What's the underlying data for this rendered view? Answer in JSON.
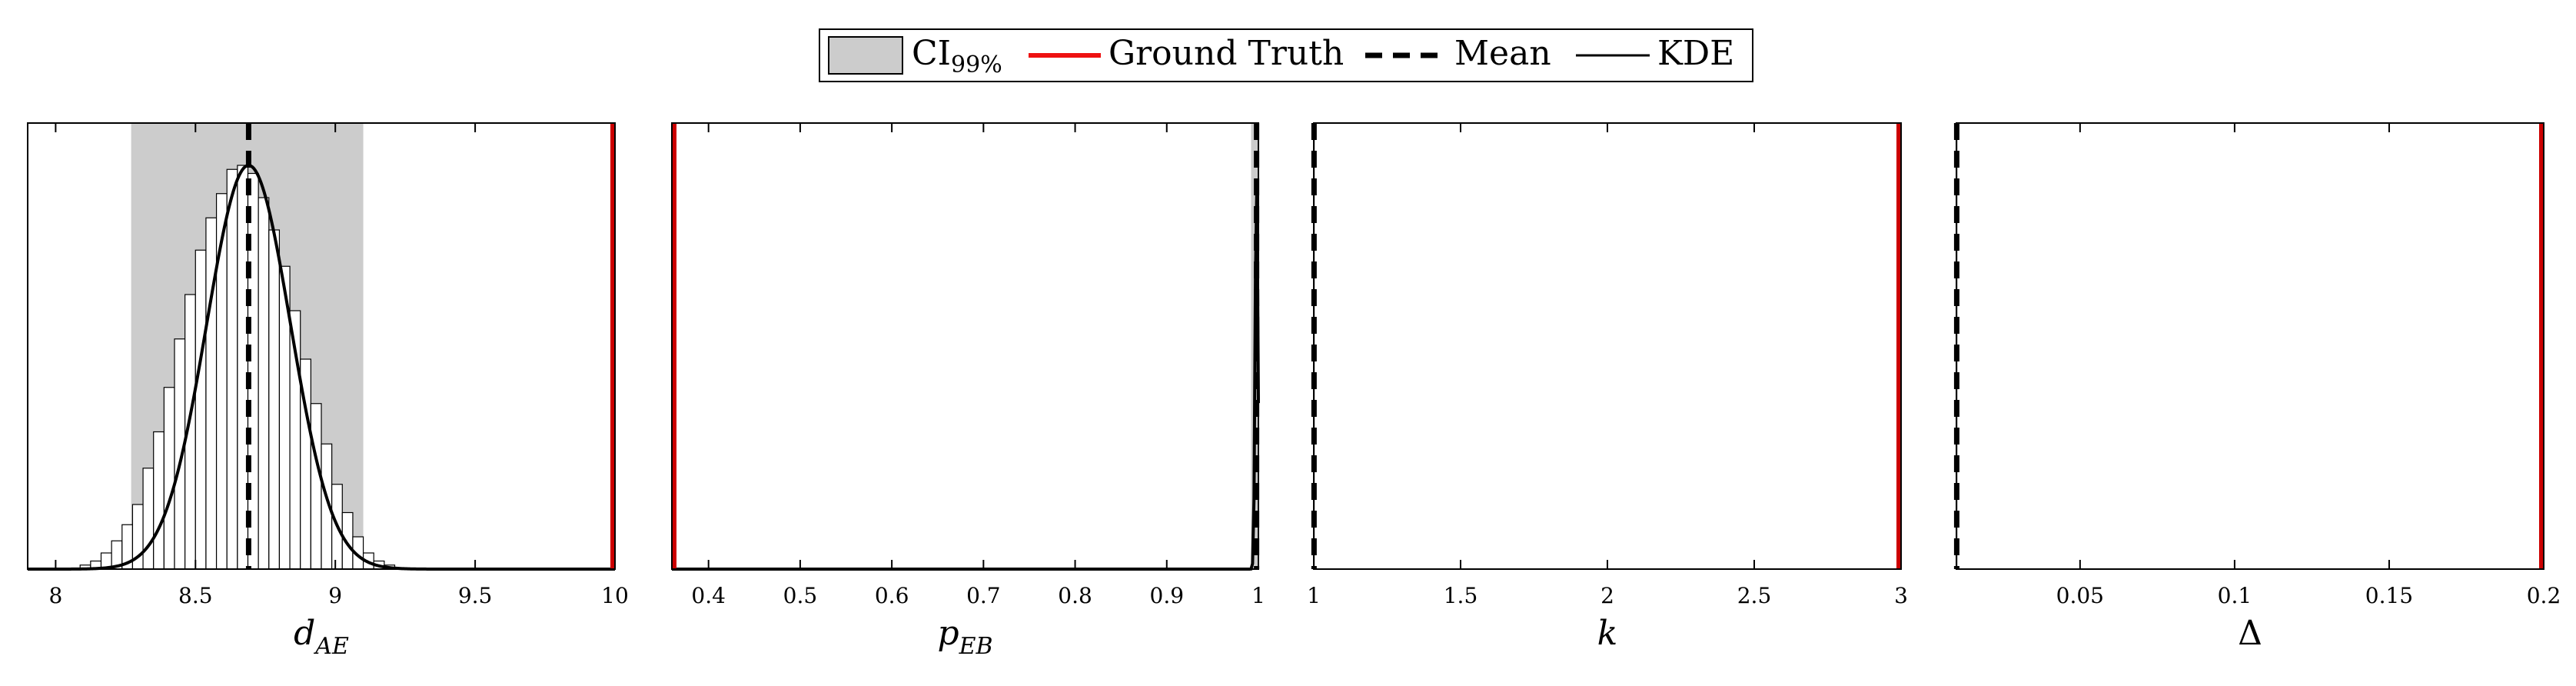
{
  "legend": {
    "entries": [
      {
        "key": "ci",
        "label": "CI",
        "subscript": "99%"
      },
      {
        "key": "truth",
        "label": "Ground Truth"
      },
      {
        "key": "mean",
        "label": "Mean"
      },
      {
        "key": "kde",
        "label": "KDE"
      }
    ]
  },
  "colors": {
    "ci_fill": "#cccccc",
    "ground_truth": "#cc0000",
    "mean": "#000000",
    "kde": "#000000",
    "axis": "#000000",
    "background": "#ffffff"
  },
  "chart_data": [
    {
      "type": "bar",
      "xlabel": "d",
      "xlabel_sub": "AE",
      "xlim": [
        7.9,
        10.0
      ],
      "xticks": [
        8,
        8.5,
        9,
        9.5,
        10
      ],
      "xticklabels": [
        "8",
        "8.5",
        "9",
        "9.5",
        "10"
      ],
      "ci": [
        8.27,
        9.1
      ],
      "mean": 8.69,
      "ground_truth": 10.0,
      "kde": {
        "mu": 8.69,
        "sigma": 0.15
      },
      "histogram": {
        "start": 8.05,
        "bin_width": 0.0375,
        "heights": [
          0.0,
          0.01,
          0.02,
          0.04,
          0.07,
          0.11,
          0.16,
          0.25,
          0.34,
          0.45,
          0.57,
          0.68,
          0.79,
          0.87,
          0.93,
          0.99,
          1.0,
          0.98,
          0.92,
          0.84,
          0.75,
          0.64,
          0.52,
          0.41,
          0.31,
          0.21,
          0.14,
          0.08,
          0.04,
          0.02,
          0.01
        ]
      },
      "grid": false
    },
    {
      "type": "bar",
      "xlabel": "p",
      "xlabel_sub": "EB",
      "xlim": [
        0.36,
        1.0
      ],
      "xticks": [
        0.4,
        0.5,
        0.6,
        0.7,
        0.8,
        0.9,
        1
      ],
      "xticklabels": [
        "0.4",
        "0.5",
        "0.6",
        "0.7",
        "0.8",
        "0.9",
        "1"
      ],
      "ci": [
        0.992,
        1.0
      ],
      "mean": 0.998,
      "ground_truth": 0.36,
      "kde": {
        "mu": 0.998,
        "sigma": 0.0015
      },
      "grid": false
    },
    {
      "type": "bar",
      "xlabel": "k",
      "xlabel_sub": "",
      "xlim": [
        1.0,
        3.0
      ],
      "xticks": [
        1,
        1.5,
        2,
        2.5,
        3
      ],
      "xticklabels": [
        "1",
        "1.5",
        "2",
        "2.5",
        "3"
      ],
      "ci": [
        1.0,
        1.003
      ],
      "mean": 1.001,
      "ground_truth": 3.0,
      "grid": false
    },
    {
      "type": "bar",
      "xlabel": "Δ",
      "xlabel_sub": "",
      "xlim": [
        0.01,
        0.2
      ],
      "xticks": [
        0.05,
        0.1,
        0.15,
        0.2
      ],
      "xticklabels": [
        "0.05",
        "0.1",
        "0.15",
        "0.2"
      ],
      "ci": [
        0.0098,
        0.0105
      ],
      "mean": 0.0101,
      "ground_truth": 0.2,
      "grid": false
    }
  ]
}
